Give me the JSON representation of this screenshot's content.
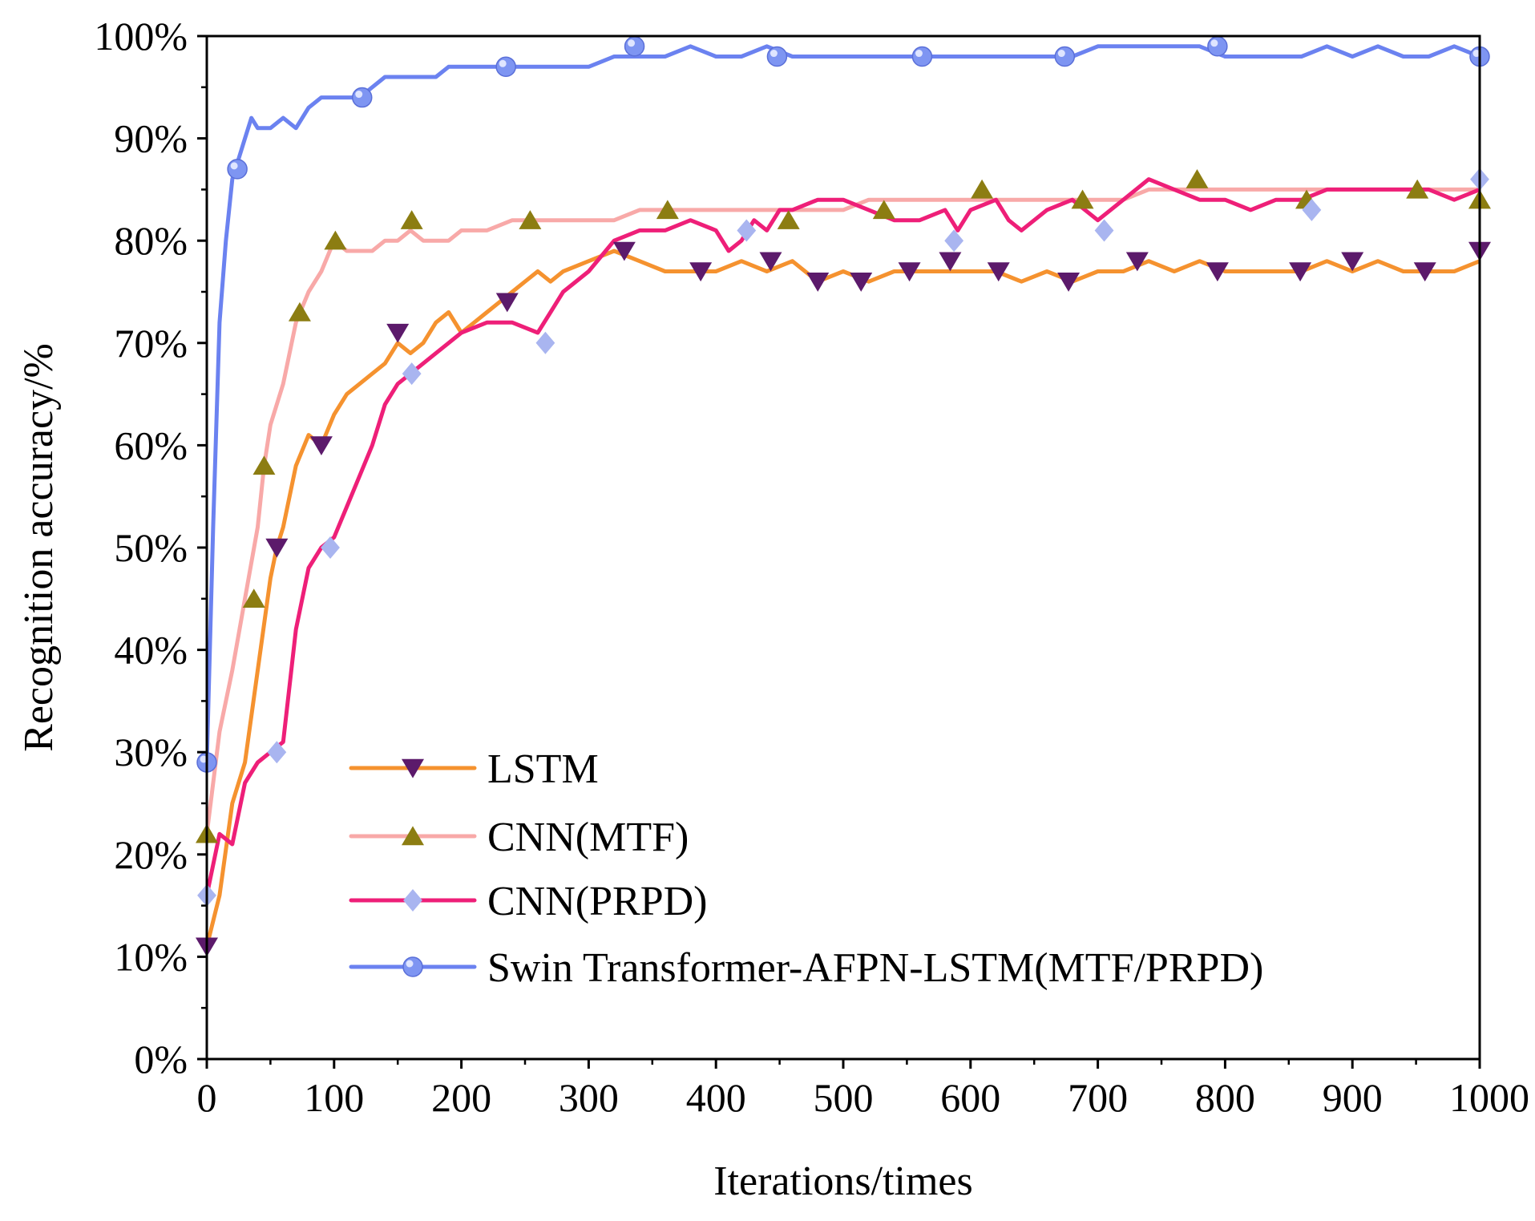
{
  "chart_data": {
    "type": "line",
    "title": "",
    "xlabel": "Iterations/times",
    "ylabel": "Recognition accuracy/%",
    "xlim": [
      0,
      1000
    ],
    "ylim": [
      0,
      100
    ],
    "x_ticks": [
      0,
      100,
      200,
      300,
      400,
      500,
      600,
      700,
      800,
      900,
      1000
    ],
    "x_tick_labels": [
      "0",
      "100",
      "200",
      "300",
      "400",
      "500",
      "600",
      "700",
      "800",
      "900",
      "1000"
    ],
    "y_ticks": [
      0,
      10,
      20,
      30,
      40,
      50,
      60,
      70,
      80,
      90,
      100
    ],
    "y_tick_labels": [
      "0%",
      "10%",
      "20%",
      "30%",
      "40%",
      "50%",
      "60%",
      "70%",
      "80%",
      "90%",
      "100%"
    ],
    "grid": false,
    "legend_position": "bottom-left",
    "series": [
      {
        "name": "LSTM",
        "color": "#f5922f",
        "marker": "triangle-down",
        "marker_color": "#5c1a6b",
        "points": [
          [
            0,
            11
          ],
          [
            10,
            16
          ],
          [
            20,
            25
          ],
          [
            30,
            29
          ],
          [
            40,
            38
          ],
          [
            50,
            47
          ],
          [
            55,
            50
          ],
          [
            60,
            52
          ],
          [
            70,
            58
          ],
          [
            80,
            61
          ],
          [
            90,
            60
          ],
          [
            100,
            63
          ],
          [
            110,
            65
          ],
          [
            120,
            66
          ],
          [
            130,
            67
          ],
          [
            140,
            68
          ],
          [
            150,
            70
          ],
          [
            160,
            69
          ],
          [
            170,
            70
          ],
          [
            180,
            72
          ],
          [
            190,
            73
          ],
          [
            200,
            71
          ],
          [
            210,
            72
          ],
          [
            220,
            73
          ],
          [
            230,
            74
          ],
          [
            240,
            75
          ],
          [
            250,
            76
          ],
          [
            260,
            77
          ],
          [
            270,
            76
          ],
          [
            280,
            77
          ],
          [
            300,
            78
          ],
          [
            320,
            79
          ],
          [
            340,
            78
          ],
          [
            360,
            77
          ],
          [
            380,
            77
          ],
          [
            400,
            77
          ],
          [
            420,
            78
          ],
          [
            440,
            77
          ],
          [
            460,
            78
          ],
          [
            480,
            76
          ],
          [
            500,
            77
          ],
          [
            520,
            76
          ],
          [
            540,
            77
          ],
          [
            560,
            77
          ],
          [
            580,
            77
          ],
          [
            600,
            77
          ],
          [
            620,
            77
          ],
          [
            640,
            76
          ],
          [
            660,
            77
          ],
          [
            680,
            76
          ],
          [
            700,
            77
          ],
          [
            720,
            77
          ],
          [
            740,
            78
          ],
          [
            760,
            77
          ],
          [
            780,
            78
          ],
          [
            800,
            77
          ],
          [
            820,
            77
          ],
          [
            840,
            77
          ],
          [
            860,
            77
          ],
          [
            880,
            78
          ],
          [
            900,
            77
          ],
          [
            920,
            78
          ],
          [
            940,
            77
          ],
          [
            960,
            77
          ],
          [
            980,
            77
          ],
          [
            1000,
            78
          ]
        ],
        "marker_points": [
          [
            0,
            11
          ],
          [
            55,
            50
          ],
          [
            90,
            60
          ],
          [
            150,
            71
          ],
          [
            236,
            74
          ],
          [
            328,
            79
          ],
          [
            388,
            77
          ],
          [
            443,
            78
          ],
          [
            480,
            76
          ],
          [
            514,
            76
          ],
          [
            552,
            77
          ],
          [
            584,
            78
          ],
          [
            622,
            77
          ],
          [
            677,
            76
          ],
          [
            731,
            78
          ],
          [
            794,
            77
          ],
          [
            859,
            77
          ],
          [
            900,
            78
          ],
          [
            957,
            77
          ],
          [
            1000,
            79
          ]
        ]
      },
      {
        "name": "CNN(MTF)",
        "color": "#f8a9a8",
        "marker": "triangle-up",
        "marker_color": "#8c7d12",
        "points": [
          [
            0,
            22
          ],
          [
            10,
            32
          ],
          [
            20,
            38
          ],
          [
            30,
            45
          ],
          [
            40,
            52
          ],
          [
            45,
            58
          ],
          [
            50,
            62
          ],
          [
            60,
            66
          ],
          [
            70,
            72
          ],
          [
            80,
            75
          ],
          [
            90,
            77
          ],
          [
            100,
            80
          ],
          [
            110,
            79
          ],
          [
            120,
            79
          ],
          [
            130,
            79
          ],
          [
            140,
            80
          ],
          [
            150,
            80
          ],
          [
            160,
            81
          ],
          [
            170,
            80
          ],
          [
            180,
            80
          ],
          [
            190,
            80
          ],
          [
            200,
            81
          ],
          [
            220,
            81
          ],
          [
            240,
            82
          ],
          [
            260,
            82
          ],
          [
            280,
            82
          ],
          [
            300,
            82
          ],
          [
            320,
            82
          ],
          [
            340,
            83
          ],
          [
            360,
            83
          ],
          [
            380,
            83
          ],
          [
            400,
            83
          ],
          [
            420,
            83
          ],
          [
            440,
            83
          ],
          [
            460,
            83
          ],
          [
            480,
            83
          ],
          [
            500,
            83
          ],
          [
            520,
            84
          ],
          [
            540,
            84
          ],
          [
            560,
            84
          ],
          [
            580,
            84
          ],
          [
            600,
            84
          ],
          [
            620,
            84
          ],
          [
            640,
            84
          ],
          [
            660,
            84
          ],
          [
            680,
            84
          ],
          [
            700,
            84
          ],
          [
            720,
            84
          ],
          [
            740,
            85
          ],
          [
            760,
            85
          ],
          [
            780,
            85
          ],
          [
            800,
            85
          ],
          [
            820,
            85
          ],
          [
            840,
            85
          ],
          [
            860,
            85
          ],
          [
            880,
            85
          ],
          [
            900,
            85
          ],
          [
            920,
            85
          ],
          [
            940,
            85
          ],
          [
            960,
            85
          ],
          [
            980,
            85
          ],
          [
            1000,
            85
          ]
        ],
        "marker_points": [
          [
            0,
            22
          ],
          [
            37,
            45
          ],
          [
            45,
            58
          ],
          [
            73,
            73
          ],
          [
            101,
            80
          ],
          [
            161,
            82
          ],
          [
            254,
            82
          ],
          [
            362,
            83
          ],
          [
            457,
            82
          ],
          [
            532,
            83
          ],
          [
            609,
            85
          ],
          [
            688,
            84
          ],
          [
            778,
            86
          ],
          [
            864,
            84
          ],
          [
            951,
            85
          ],
          [
            1000,
            84
          ]
        ]
      },
      {
        "name": "CNN(PRPD)",
        "color": "#ee1f78",
        "marker": "diamond",
        "marker_color": "#a9b5f0",
        "points": [
          [
            0,
            16
          ],
          [
            10,
            22
          ],
          [
            20,
            21
          ],
          [
            30,
            27
          ],
          [
            40,
            29
          ],
          [
            50,
            30
          ],
          [
            60,
            31
          ],
          [
            70,
            42
          ],
          [
            80,
            48
          ],
          [
            90,
            50
          ],
          [
            100,
            51
          ],
          [
            110,
            54
          ],
          [
            120,
            57
          ],
          [
            130,
            60
          ],
          [
            140,
            64
          ],
          [
            150,
            66
          ],
          [
            160,
            67
          ],
          [
            170,
            68
          ],
          [
            180,
            69
          ],
          [
            190,
            70
          ],
          [
            200,
            71
          ],
          [
            220,
            72
          ],
          [
            240,
            72
          ],
          [
            260,
            71
          ],
          [
            270,
            73
          ],
          [
            280,
            75
          ],
          [
            300,
            77
          ],
          [
            320,
            80
          ],
          [
            340,
            81
          ],
          [
            360,
            81
          ],
          [
            380,
            82
          ],
          [
            400,
            81
          ],
          [
            410,
            79
          ],
          [
            420,
            80
          ],
          [
            430,
            82
          ],
          [
            440,
            81
          ],
          [
            450,
            83
          ],
          [
            460,
            83
          ],
          [
            480,
            84
          ],
          [
            500,
            84
          ],
          [
            520,
            83
          ],
          [
            540,
            82
          ],
          [
            560,
            82
          ],
          [
            580,
            83
          ],
          [
            590,
            81
          ],
          [
            600,
            83
          ],
          [
            620,
            84
          ],
          [
            630,
            82
          ],
          [
            640,
            81
          ],
          [
            660,
            83
          ],
          [
            680,
            84
          ],
          [
            700,
            82
          ],
          [
            710,
            83
          ],
          [
            720,
            84
          ],
          [
            740,
            86
          ],
          [
            760,
            85
          ],
          [
            780,
            84
          ],
          [
            800,
            84
          ],
          [
            820,
            83
          ],
          [
            840,
            84
          ],
          [
            860,
            84
          ],
          [
            880,
            85
          ],
          [
            900,
            85
          ],
          [
            920,
            85
          ],
          [
            940,
            85
          ],
          [
            960,
            85
          ],
          [
            980,
            84
          ],
          [
            1000,
            85
          ]
        ],
        "marker_points": [
          [
            0,
            16
          ],
          [
            55,
            30
          ],
          [
            97,
            50
          ],
          [
            161,
            67
          ],
          [
            266,
            70
          ],
          [
            424,
            81
          ],
          [
            587,
            80
          ],
          [
            705,
            81
          ],
          [
            868,
            83
          ],
          [
            1000,
            86
          ]
        ]
      },
      {
        "name": "Swin Transformer-AFPN-LSTM(MTF/PRPD)",
        "color": "#6b82f0",
        "marker": "circle",
        "marker_color": "#7e95f2",
        "points": [
          [
            0,
            29
          ],
          [
            5,
            52
          ],
          [
            10,
            72
          ],
          [
            15,
            80
          ],
          [
            20,
            86
          ],
          [
            25,
            88
          ],
          [
            30,
            90
          ],
          [
            35,
            92
          ],
          [
            40,
            91
          ],
          [
            50,
            91
          ],
          [
            60,
            92
          ],
          [
            70,
            91
          ],
          [
            80,
            93
          ],
          [
            90,
            94
          ],
          [
            100,
            94
          ],
          [
            110,
            94
          ],
          [
            120,
            94
          ],
          [
            130,
            95
          ],
          [
            140,
            96
          ],
          [
            150,
            96
          ],
          [
            160,
            96
          ],
          [
            170,
            96
          ],
          [
            180,
            96
          ],
          [
            190,
            97
          ],
          [
            200,
            97
          ],
          [
            220,
            97
          ],
          [
            240,
            97
          ],
          [
            260,
            97
          ],
          [
            280,
            97
          ],
          [
            300,
            97
          ],
          [
            320,
            98
          ],
          [
            340,
            98
          ],
          [
            360,
            98
          ],
          [
            380,
            99
          ],
          [
            400,
            98
          ],
          [
            420,
            98
          ],
          [
            440,
            99
          ],
          [
            460,
            98
          ],
          [
            480,
            98
          ],
          [
            500,
            98
          ],
          [
            520,
            98
          ],
          [
            540,
            98
          ],
          [
            560,
            98
          ],
          [
            580,
            98
          ],
          [
            600,
            98
          ],
          [
            620,
            98
          ],
          [
            640,
            98
          ],
          [
            660,
            98
          ],
          [
            680,
            98
          ],
          [
            700,
            99
          ],
          [
            720,
            99
          ],
          [
            740,
            99
          ],
          [
            760,
            99
          ],
          [
            780,
            99
          ],
          [
            800,
            98
          ],
          [
            820,
            98
          ],
          [
            840,
            98
          ],
          [
            860,
            98
          ],
          [
            880,
            99
          ],
          [
            900,
            98
          ],
          [
            920,
            99
          ],
          [
            940,
            98
          ],
          [
            960,
            98
          ],
          [
            980,
            99
          ],
          [
            1000,
            98
          ]
        ],
        "marker_points": [
          [
            0,
            29
          ],
          [
            24,
            87
          ],
          [
            122,
            94
          ],
          [
            235,
            97
          ],
          [
            336,
            99
          ],
          [
            448,
            98
          ],
          [
            562,
            98
          ],
          [
            674,
            98
          ],
          [
            794,
            99
          ],
          [
            1000,
            98
          ]
        ]
      }
    ]
  }
}
